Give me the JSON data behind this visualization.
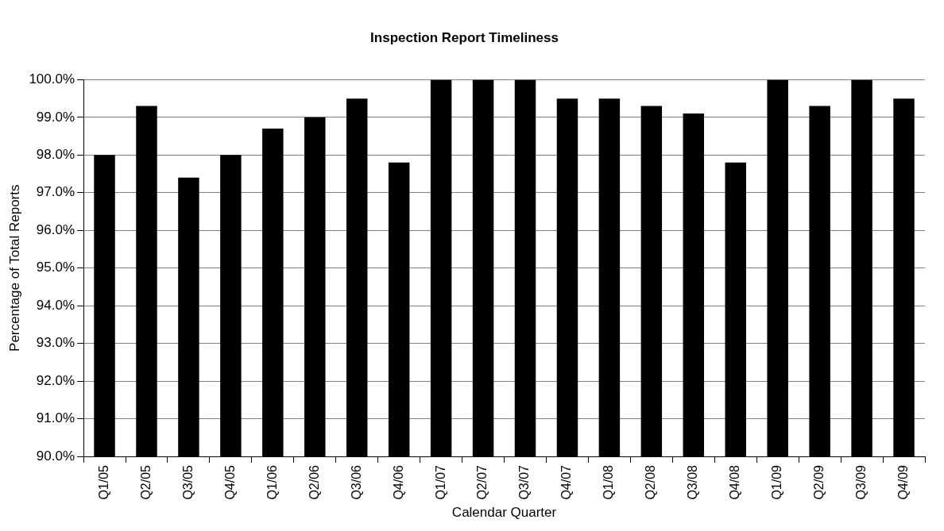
{
  "chart_data": {
    "type": "bar",
    "title": "Inspection Report Timeliness",
    "xlabel": "Calendar Quarter",
    "ylabel": "Percentage of Total Reports",
    "categories": [
      "Q1/05",
      "Q2/05",
      "Q3/05",
      "Q4/05",
      "Q1/06",
      "Q2/06",
      "Q3/06",
      "Q4/06",
      "Q1/07",
      "Q2/07",
      "Q3/07",
      "Q4/07",
      "Q1/08",
      "Q2/08",
      "Q3/08",
      "Q4/08",
      "Q1/09",
      "Q2/09",
      "Q3/09",
      "Q4/09"
    ],
    "values": [
      98.0,
      99.3,
      97.4,
      98.0,
      98.7,
      99.0,
      99.5,
      97.8,
      100,
      100,
      100,
      99.5,
      99.5,
      99.3,
      99.1,
      97.8,
      100,
      99.3,
      100,
      99.5
    ],
    "color": "#000000",
    "ylim": [
      90,
      100
    ],
    "yticks": [
      {
        "value": 90,
        "label": "90.0%"
      },
      {
        "value": 91,
        "label": "91.0%"
      },
      {
        "value": 92,
        "label": "92.0%"
      },
      {
        "value": 93,
        "label": "93.0%"
      },
      {
        "value": 94,
        "label": "94.0%"
      },
      {
        "value": 95,
        "label": "95.0%"
      },
      {
        "value": 96,
        "label": "96.0%"
      },
      {
        "value": 97,
        "label": "97.0%"
      },
      {
        "value": 98,
        "label": "98.0%"
      },
      {
        "value": 99,
        "label": "99.0%"
      },
      {
        "value": 100,
        "label": "100.0%"
      }
    ],
    "grid": "y",
    "legend": false
  }
}
